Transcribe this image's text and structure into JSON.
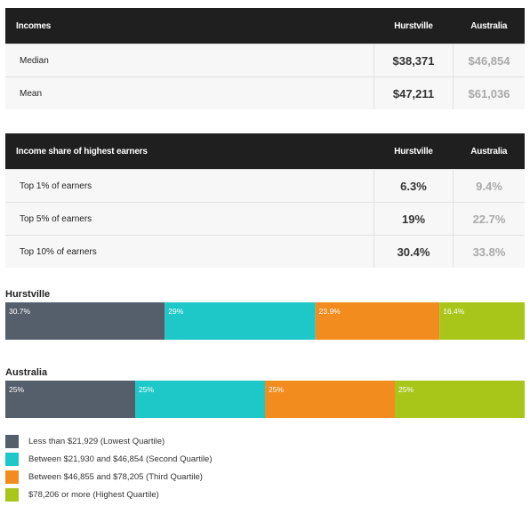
{
  "incomes_table": {
    "headers": [
      "Incomes",
      "Hurstville",
      "Australia"
    ],
    "rows": [
      {
        "label": "Median",
        "hurstville": "$38,371",
        "australia": "$46,854"
      },
      {
        "label": "Mean",
        "hurstville": "$47,211",
        "australia": "$61,036"
      }
    ]
  },
  "share_table": {
    "headers": [
      "Income share of highest earners",
      "Hurstville",
      "Australia"
    ],
    "rows": [
      {
        "label": "Top 1% of earners",
        "hurstville": "6.3%",
        "australia": "9.4%"
      },
      {
        "label": "Top 5% of earners",
        "hurstville": "19%",
        "australia": "22.7%"
      },
      {
        "label": "Top 10% of earners",
        "hurstville": "30.4%",
        "australia": "33.8%"
      }
    ]
  },
  "chart_data": {
    "type": "bar",
    "orientation": "horizontal-stacked-100",
    "categories": [
      "Hurstville",
      "Australia"
    ],
    "series": [
      {
        "name": "Less than $21,929 (Lowest Quartile)",
        "color": "#555e6b",
        "values": [
          30.7,
          25
        ],
        "labels": [
          "30.7%",
          "25%"
        ]
      },
      {
        "name": "Between $21,930 and $46,854 (Second Quartile)",
        "color": "#1fc8c8",
        "values": [
          29,
          25
        ],
        "labels": [
          "29%",
          "25%"
        ]
      },
      {
        "name": "Between $46,855 and $78,205 (Third Quartile)",
        "color": "#f28c1e",
        "values": [
          23.9,
          25
        ],
        "labels": [
          "23.9%",
          "25%"
        ]
      },
      {
        "name": "$78,206 or more (Highest Quartile)",
        "color": "#a8c61a",
        "values": [
          16.4,
          25
        ],
        "labels": [
          "16.4%",
          "25%"
        ]
      }
    ],
    "legend_position": "bottom"
  }
}
